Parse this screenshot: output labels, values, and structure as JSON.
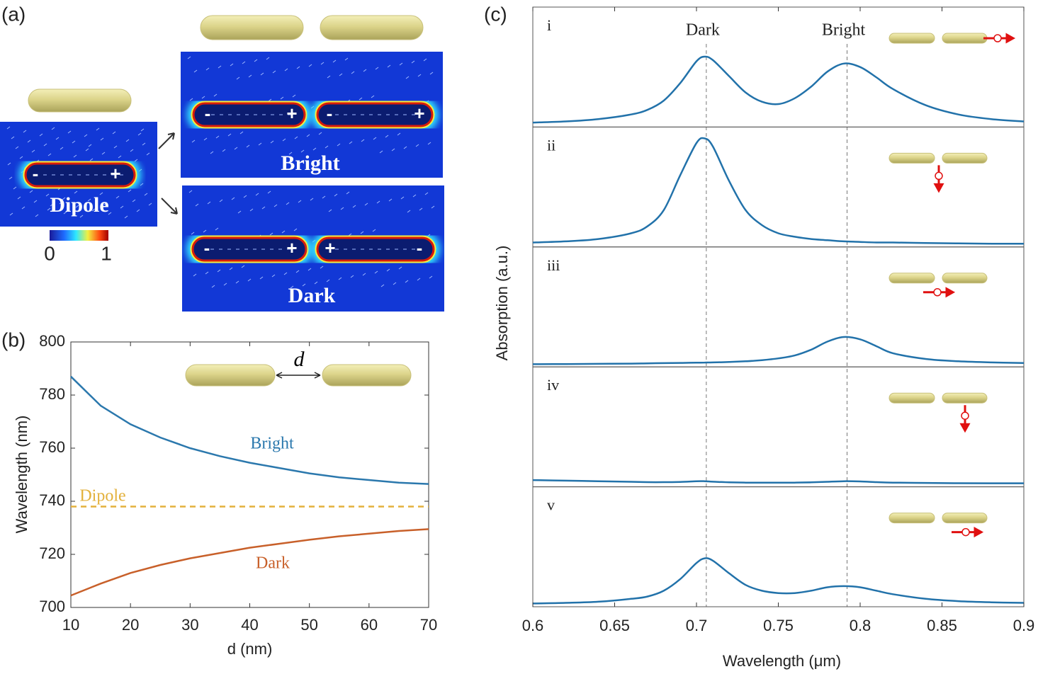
{
  "panel_labels": [
    "(a)",
    "(b)",
    "(c)"
  ],
  "panel_a": {
    "map_labels": [
      "Dipole",
      "Bright",
      "Dark"
    ],
    "charges": [
      "-",
      "+"
    ],
    "colorbar_ticks": [
      0,
      1
    ]
  },
  "chart_data": [
    {
      "type": "line",
      "x": [
        10,
        15,
        20,
        25,
        30,
        35,
        40,
        45,
        50,
        55,
        60,
        65,
        70
      ],
      "series": [
        {
          "name": "Bright",
          "color": "#2b78ad",
          "values": [
            787,
            776,
            769,
            764,
            760,
            757,
            754.5,
            752.5,
            750.5,
            749,
            748,
            747,
            746.5
          ]
        },
        {
          "name": "Dipole",
          "color": "#e3b13c",
          "dashed": true,
          "values": [
            738,
            738,
            738,
            738,
            738,
            738,
            738,
            738,
            738,
            738,
            738,
            738,
            738
          ]
        },
        {
          "name": "Dark",
          "color": "#c8602a",
          "values": [
            704.5,
            709,
            713,
            716,
            718.5,
            720.5,
            722.5,
            724,
            725.5,
            726.8,
            727.8,
            728.8,
            729.5
          ]
        }
      ],
      "xlim": [
        10,
        70
      ],
      "xticks": [
        10,
        20,
        30,
        40,
        50,
        60,
        70
      ],
      "ylim": [
        700,
        800
      ],
      "yticks": [
        700,
        720,
        740,
        760,
        780,
        800
      ],
      "xlabel": "d (nm)",
      "ylabel": "Wavelength (nm)",
      "annotation": "d"
    },
    {
      "type": "line",
      "x": [
        0.6,
        0.62,
        0.64,
        0.66,
        0.67,
        0.68,
        0.69,
        0.7,
        0.705,
        0.71,
        0.72,
        0.73,
        0.74,
        0.75,
        0.76,
        0.77,
        0.78,
        0.79,
        0.8,
        0.81,
        0.82,
        0.84,
        0.86,
        0.88,
        0.9
      ],
      "color": "#2272aa",
      "subplots": [
        {
          "label": "i",
          "values": [
            0.02,
            0.03,
            0.05,
            0.09,
            0.13,
            0.21,
            0.36,
            0.55,
            0.59,
            0.56,
            0.42,
            0.28,
            0.2,
            0.18,
            0.23,
            0.33,
            0.46,
            0.53,
            0.5,
            0.41,
            0.31,
            0.17,
            0.09,
            0.05,
            0.03
          ]
        },
        {
          "label": "ii",
          "values": [
            0.02,
            0.03,
            0.05,
            0.1,
            0.16,
            0.3,
            0.6,
            0.88,
            0.92,
            0.85,
            0.55,
            0.3,
            0.17,
            0.1,
            0.07,
            0.05,
            0.04,
            0.03,
            0.025,
            0.02,
            0.02,
            0.015,
            0.012,
            0.01,
            0.01
          ]
        },
        {
          "label": "iii",
          "values": [
            0.005,
            0.006,
            0.008,
            0.01,
            0.012,
            0.014,
            0.016,
            0.018,
            0.019,
            0.02,
            0.024,
            0.03,
            0.04,
            0.055,
            0.08,
            0.13,
            0.2,
            0.24,
            0.22,
            0.16,
            0.1,
            0.05,
            0.03,
            0.02,
            0.015
          ]
        },
        {
          "label": "iv",
          "values": [
            0.04,
            0.035,
            0.03,
            0.025,
            0.022,
            0.022,
            0.024,
            0.03,
            0.03,
            0.026,
            0.02,
            0.018,
            0.017,
            0.017,
            0.018,
            0.02,
            0.025,
            0.03,
            0.028,
            0.022,
            0.018,
            0.015,
            0.013,
            0.012,
            0.012
          ]
        },
        {
          "label": "v",
          "values": [
            0.01,
            0.015,
            0.025,
            0.05,
            0.07,
            0.12,
            0.22,
            0.36,
            0.4,
            0.38,
            0.27,
            0.17,
            0.12,
            0.1,
            0.1,
            0.12,
            0.15,
            0.16,
            0.15,
            0.12,
            0.09,
            0.05,
            0.03,
            0.02,
            0.015
          ]
        }
      ],
      "vlines": [
        {
          "value": 0.706,
          "label": "Dark"
        },
        {
          "value": 0.792,
          "label": "Bright"
        }
      ],
      "xlim": [
        0.6,
        0.9
      ],
      "xticks": [
        0.6,
        0.65,
        0.7,
        0.75,
        0.8,
        0.85,
        0.9
      ],
      "ylim": [
        0,
        1
      ],
      "xlabel": "Wavelength (μm)",
      "ylabel": "Absorption (a.u.)"
    }
  ]
}
